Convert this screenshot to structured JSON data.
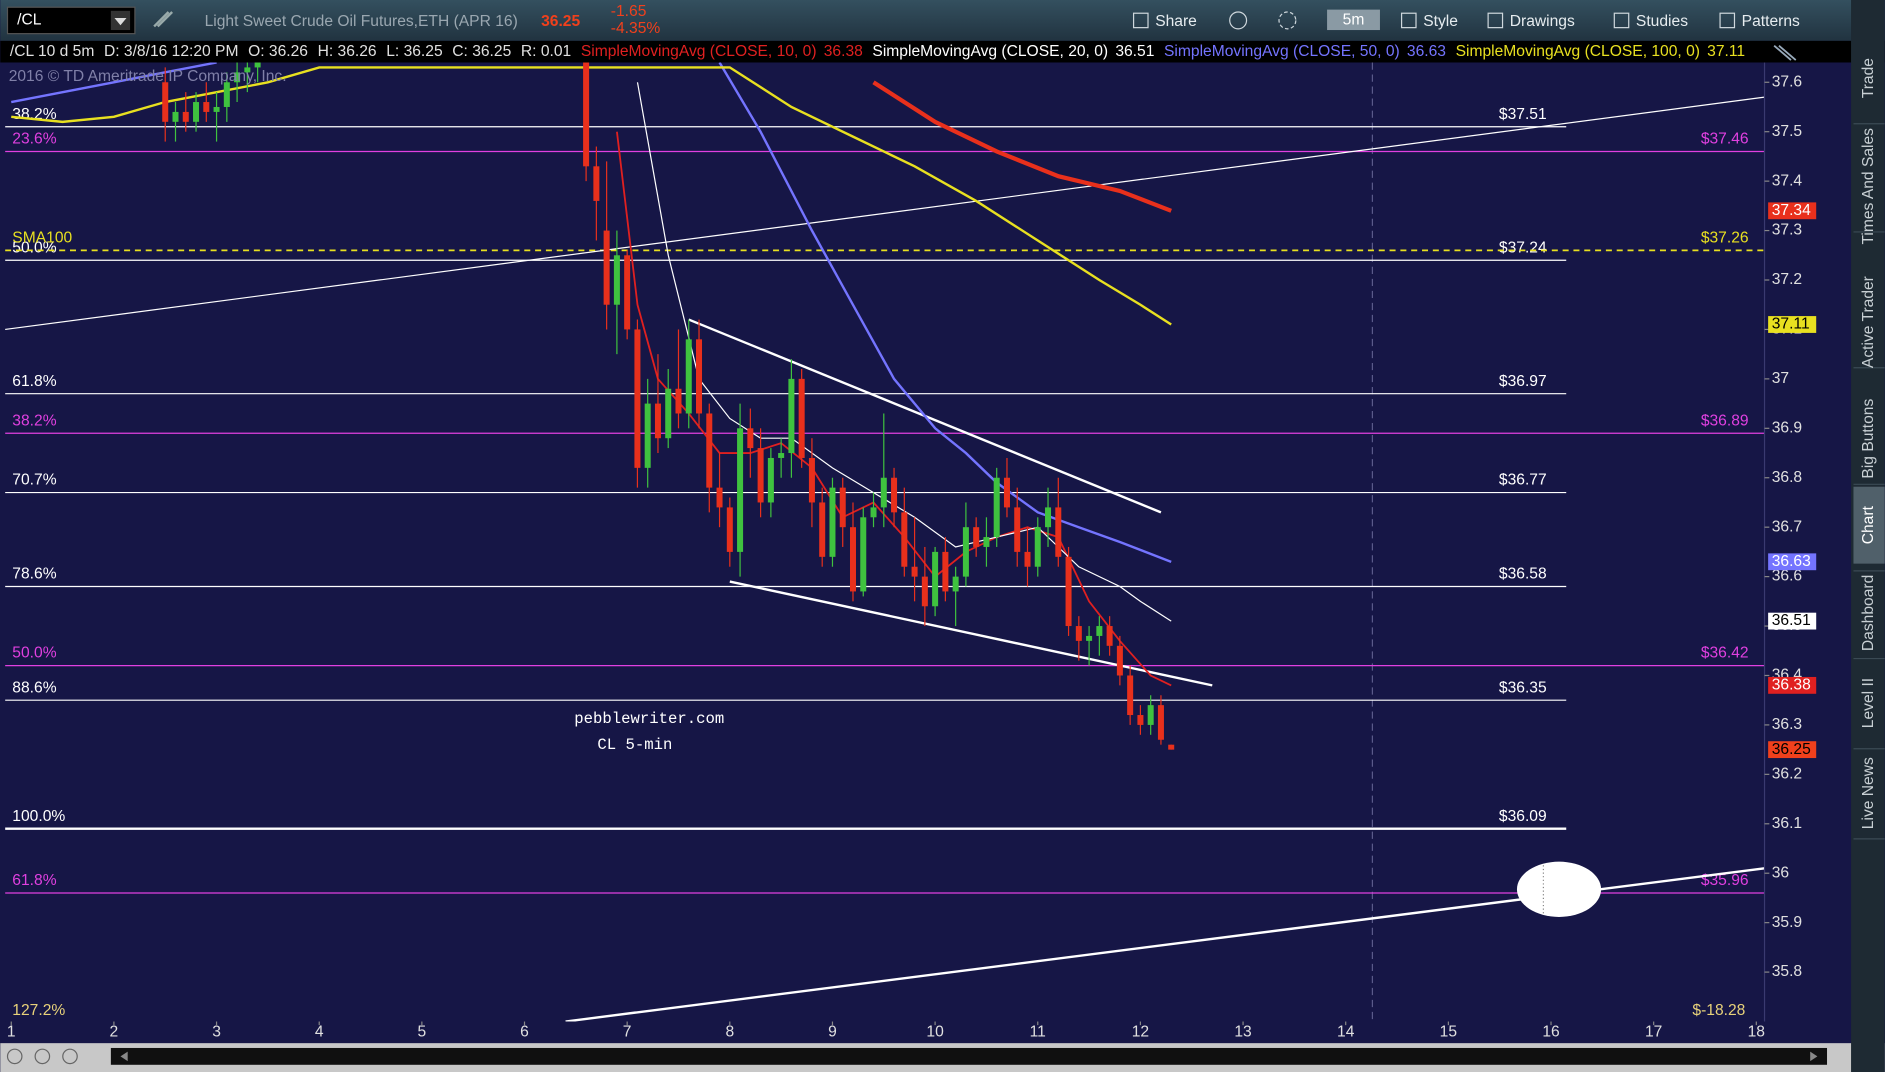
{
  "toolbar": {
    "symbol": "/CL",
    "description": "Light Sweet Crude Oil Futures,ETH (APR 16)",
    "change": "-1.65",
    "change_pct": "-4.35%",
    "timeframe": "5m",
    "buttons": [
      "Share",
      "Style",
      "Drawings",
      "Studies",
      "Patterns"
    ]
  },
  "info": [
    "/CL 10 d 5m",
    "D: 3/8/16 12:20 PM",
    "O: 36.26",
    "H: 36.26",
    "L: 36.25",
    "C: 36.25",
    "R: 0.01"
  ],
  "copyright": "2016 © TD Ameritrade IP Company, Inc.",
  "watermark": [
    "pebblewriter.com",
    "CL 5-min"
  ],
  "sidebar_tabs": [
    "Trade",
    "Times And Sales",
    "Active Trader",
    "Big Buttons",
    "Chart",
    "Dashboard",
    "Level II",
    "Live News"
  ],
  "active_tab": 4,
  "chart_data": {
    "type": "candlestick",
    "xlim": [
      0.94,
      18.08
    ],
    "ylim": [
      35.7,
      37.64
    ],
    "xticks": [
      1,
      2,
      3,
      4,
      5,
      6,
      7,
      8,
      9,
      10,
      11,
      12,
      13,
      14,
      15,
      16,
      17,
      18
    ],
    "yticks": [
      35.8,
      35.9,
      36,
      36.1,
      36.2,
      36.3,
      36.4,
      36.5,
      36.6,
      36.7,
      36.8,
      36.9,
      37,
      37.1,
      37.2,
      37.3,
      37.4,
      37.5,
      37.6
    ],
    "last_price": 36.25,
    "last_color": "#f0401c",
    "up_color": "#3fc23f",
    "down_color": "#e8301c",
    "candles": [
      [
        2.5,
        37.6,
        37.63,
        37.48,
        37.52
      ],
      [
        2.6,
        37.52,
        37.56,
        37.48,
        37.54
      ],
      [
        2.7,
        37.54,
        37.58,
        37.5,
        37.52
      ],
      [
        2.8,
        37.52,
        37.58,
        37.5,
        37.56
      ],
      [
        2.9,
        37.56,
        37.6,
        37.52,
        37.54
      ],
      [
        3.0,
        37.54,
        37.58,
        37.48,
        37.55
      ],
      [
        3.1,
        37.55,
        37.62,
        37.52,
        37.6
      ],
      [
        3.2,
        37.6,
        37.64,
        37.56,
        37.62
      ],
      [
        3.3,
        37.62,
        37.64,
        37.58,
        37.63
      ],
      [
        3.4,
        37.63,
        37.66,
        37.6,
        37.64
      ],
      [
        6.6,
        37.64,
        37.64,
        37.4,
        37.43
      ],
      [
        6.7,
        37.43,
        37.47,
        37.28,
        37.36
      ],
      [
        6.8,
        37.3,
        37.44,
        37.1,
        37.15
      ],
      [
        6.9,
        37.15,
        37.3,
        37.05,
        37.25
      ],
      [
        7.0,
        37.25,
        37.26,
        37.08,
        37.1
      ],
      [
        7.1,
        37.1,
        37.12,
        36.78,
        36.82
      ],
      [
        7.2,
        36.82,
        37.0,
        36.78,
        36.95
      ],
      [
        7.3,
        36.95,
        37.05,
        36.85,
        36.88
      ],
      [
        7.4,
        36.88,
        37.02,
        36.86,
        36.98
      ],
      [
        7.5,
        36.98,
        37.1,
        36.9,
        36.93
      ],
      [
        7.6,
        36.93,
        37.12,
        36.9,
        37.08
      ],
      [
        7.7,
        37.08,
        37.12,
        36.9,
        36.93
      ],
      [
        7.8,
        36.93,
        36.95,
        36.73,
        36.78
      ],
      [
        7.9,
        36.78,
        36.85,
        36.7,
        36.74
      ],
      [
        8.0,
        36.74,
        36.76,
        36.62,
        36.65
      ],
      [
        8.1,
        36.65,
        36.95,
        36.6,
        36.9
      ],
      [
        8.2,
        36.9,
        36.94,
        36.8,
        36.86
      ],
      [
        8.3,
        36.86,
        36.9,
        36.72,
        36.75
      ],
      [
        8.4,
        36.75,
        36.86,
        36.72,
        36.84
      ],
      [
        8.5,
        36.84,
        36.88,
        36.8,
        36.85
      ],
      [
        8.6,
        36.85,
        37.04,
        36.8,
        37.0
      ],
      [
        8.7,
        37.0,
        37.02,
        36.82,
        36.84
      ],
      [
        8.8,
        36.84,
        36.88,
        36.7,
        36.75
      ],
      [
        8.9,
        36.75,
        36.78,
        36.62,
        36.64
      ],
      [
        9.0,
        36.64,
        36.8,
        36.62,
        36.78
      ],
      [
        9.1,
        36.78,
        36.8,
        36.66,
        36.7
      ],
      [
        9.2,
        36.7,
        36.75,
        36.55,
        36.57
      ],
      [
        9.3,
        36.57,
        36.74,
        36.56,
        36.72
      ],
      [
        9.4,
        36.72,
        36.77,
        36.7,
        36.74
      ],
      [
        9.5,
        36.74,
        36.93,
        36.7,
        36.8
      ],
      [
        9.6,
        36.8,
        36.82,
        36.7,
        36.73
      ],
      [
        9.7,
        36.73,
        36.78,
        36.6,
        36.62
      ],
      [
        9.8,
        36.62,
        36.72,
        36.55,
        36.6
      ],
      [
        9.9,
        36.6,
        36.66,
        36.5,
        36.54
      ],
      [
        10.0,
        36.54,
        36.66,
        36.52,
        36.65
      ],
      [
        10.1,
        36.65,
        36.68,
        36.55,
        36.57
      ],
      [
        10.2,
        36.57,
        36.62,
        36.5,
        36.6
      ],
      [
        10.3,
        36.6,
        36.75,
        36.58,
        36.7
      ],
      [
        10.4,
        36.7,
        36.72,
        36.64,
        36.66
      ],
      [
        10.5,
        36.66,
        36.72,
        36.62,
        36.68
      ],
      [
        10.6,
        36.68,
        36.82,
        36.66,
        36.8
      ],
      [
        10.7,
        36.8,
        36.84,
        36.72,
        36.74
      ],
      [
        10.8,
        36.74,
        36.78,
        36.62,
        36.65
      ],
      [
        10.9,
        36.65,
        36.7,
        36.58,
        36.62
      ],
      [
        11.0,
        36.62,
        36.72,
        36.6,
        36.7
      ],
      [
        11.1,
        36.7,
        36.78,
        36.66,
        36.74
      ],
      [
        11.2,
        36.74,
        36.8,
        36.62,
        36.64
      ],
      [
        11.3,
        36.64,
        36.66,
        36.48,
        36.5
      ],
      [
        11.4,
        36.5,
        36.52,
        36.43,
        36.47
      ],
      [
        11.5,
        36.47,
        36.5,
        36.42,
        36.48
      ],
      [
        11.6,
        36.48,
        36.52,
        36.44,
        36.5
      ],
      [
        11.7,
        36.5,
        36.52,
        36.44,
        36.46
      ],
      [
        11.8,
        36.46,
        36.48,
        36.38,
        36.4
      ],
      [
        11.9,
        36.4,
        36.42,
        36.3,
        36.32
      ],
      [
        12.0,
        36.32,
        36.34,
        36.28,
        36.3
      ],
      [
        12.1,
        36.3,
        36.36,
        36.28,
        36.34
      ],
      [
        12.2,
        36.34,
        36.36,
        36.26,
        36.27
      ],
      [
        12.3,
        36.26,
        36.26,
        36.25,
        36.25
      ]
    ],
    "series": [
      {
        "name": "SimpleMovingAvg (CLOSE, 10, 0)",
        "color": "#e02020",
        "width": 1.5,
        "x": [
          6.9,
          7.1,
          7.3,
          7.6,
          7.9,
          8.2,
          8.5,
          8.8,
          9.1,
          9.4,
          9.7,
          10.0,
          10.3,
          10.6,
          10.9,
          11.2,
          11.5,
          11.8,
          12.1,
          12.3
        ],
        "values": [
          37.5,
          37.15,
          37.0,
          36.93,
          36.85,
          36.85,
          36.87,
          36.82,
          36.72,
          36.75,
          36.68,
          36.6,
          36.65,
          36.68,
          36.7,
          36.68,
          36.55,
          36.47,
          36.4,
          36.38
        ]
      },
      {
        "name": "SimpleMovingAvg (CLOSE, 20, 0)",
        "color": "#ffffff",
        "width": 1,
        "x": [
          7.1,
          7.4,
          7.7,
          8.0,
          8.3,
          8.6,
          9.0,
          9.4,
          9.8,
          10.2,
          10.6,
          11.0,
          11.4,
          11.8,
          12.0,
          12.3
        ],
        "values": [
          37.6,
          37.25,
          37.0,
          36.92,
          36.88,
          36.88,
          36.82,
          36.77,
          36.72,
          36.66,
          36.68,
          36.7,
          36.62,
          36.58,
          36.55,
          36.51
        ]
      },
      {
        "name": "SimpleMovingAvg (CLOSE, 50, 0)",
        "color": "#7474ff",
        "width": 2,
        "x": [
          1.0,
          1.5,
          2.0,
          2.5,
          3.0,
          null,
          7.9,
          8.3,
          8.8,
          9.2,
          9.6,
          10.0,
          10.3,
          10.6,
          11.0,
          11.4,
          11.8,
          12.3
        ],
        "values": [
          37.56,
          37.58,
          37.6,
          37.62,
          37.64,
          null,
          37.64,
          37.5,
          37.3,
          37.15,
          37.0,
          36.9,
          36.85,
          36.79,
          36.73,
          36.7,
          36.67,
          36.63
        ]
      },
      {
        "name": "SimpleMovingAvg (CLOSE, 100, 0)",
        "color": "#e8e020",
        "width": 2,
        "x": [
          1.0,
          1.5,
          2.0,
          2.5,
          3.0,
          3.5,
          4.0,
          8.0,
          8.6,
          9.2,
          9.8,
          10.4,
          11.0,
          11.6,
          12.0,
          12.3
        ],
        "values": [
          37.53,
          37.52,
          37.53,
          37.56,
          37.58,
          37.6,
          37.63,
          37.63,
          37.55,
          37.49,
          37.43,
          37.36,
          37.28,
          37.2,
          37.15,
          37.11
        ]
      },
      {
        "color": "#e8301c",
        "width": 3.5,
        "x": [
          9.4,
          10.0,
          10.6,
          11.2,
          11.8,
          12.3
        ],
        "values": [
          37.6,
          37.52,
          37.46,
          37.41,
          37.38,
          37.34
        ]
      }
    ],
    "fib_levels": [
      {
        "value": 37.51,
        "pct": "38.2%",
        "label": "$37.51",
        "color": "#ffffff",
        "side": "mid"
      },
      {
        "value": 37.46,
        "pct": "23.6%",
        "label": "$37.46",
        "color": "#e040e0",
        "side": "right"
      },
      {
        "value": 37.24,
        "pct": "50.0%",
        "label": "$37.24",
        "color": "#ffffff",
        "side": "mid"
      },
      {
        "value": 36.97,
        "pct": "61.8%",
        "label": "$36.97",
        "color": "#ffffff",
        "side": "mid"
      },
      {
        "value": 36.89,
        "pct": "38.2%",
        "label": "$36.89",
        "color": "#e040e0",
        "side": "right"
      },
      {
        "value": 36.77,
        "pct": "70.7%",
        "label": "$36.77",
        "color": "#ffffff",
        "side": "mid"
      },
      {
        "value": 36.58,
        "pct": "78.6%",
        "label": "$36.58",
        "color": "#ffffff",
        "side": "mid"
      },
      {
        "value": 36.42,
        "pct": "50.0%",
        "label": "$36.42",
        "color": "#e040e0",
        "side": "right"
      },
      {
        "value": 36.35,
        "pct": "88.6%",
        "label": "$36.35",
        "color": "#ffffff",
        "side": "mid"
      },
      {
        "value": 36.09,
        "pct": "100.0%",
        "label": "$36.09",
        "color": "#ffffff",
        "side": "mid"
      },
      {
        "value": 35.96,
        "pct": "61.8%",
        "label": "$35.96",
        "color": "#e040e0",
        "side": "right"
      }
    ],
    "sma_line": {
      "value": 37.26,
      "name": "SMA100",
      "label": "$37.26",
      "color": "#e8e020"
    },
    "extra_labels": [
      "127.2%",
      "$-18.28"
    ],
    "trendlines": [
      {
        "x": [
          0.94,
          18.08
        ],
        "y": [
          37.1,
          37.57
        ]
      },
      {
        "x": [
          6.4,
          18.08
        ],
        "y": [
          35.7,
          36.01
        ]
      },
      {
        "x": [
          7.6,
          12.2
        ],
        "y": [
          37.12,
          36.73
        ]
      },
      {
        "x": [
          8.0,
          12.7
        ],
        "y": [
          36.59,
          36.38
        ]
      }
    ],
    "marker_x": 14.26
  }
}
